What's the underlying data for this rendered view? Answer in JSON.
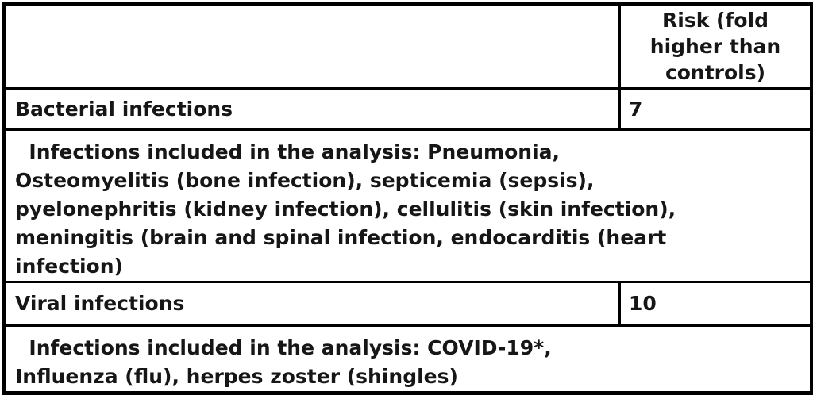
{
  "colors": {
    "border": "#000000",
    "text": "#161616",
    "background": "#ffffff"
  },
  "table": {
    "header": {
      "risk_label": "Risk (fold higher than controls)"
    },
    "bacterial": {
      "label": "Bacterial infections",
      "value": "7",
      "details": "  Infections included in the analysis: Pneumonia,\nOsteomyelitis (bone infection), septicemia (sepsis),\npyelonephritis (kidney infection), cellulitis (skin infection),\nmeningitis (brain and spinal infection, endocarditis (heart\ninfection)"
    },
    "viral": {
      "label": "Viral infections",
      "value": "10",
      "details": "  Infections included in the analysis: COVID-19*,\nInfluenza (flu), herpes zoster (shingles)"
    }
  },
  "chart_data": {
    "type": "table",
    "columns": [
      "",
      "Risk (fold higher than controls)"
    ],
    "rows": [
      [
        "Bacterial infections",
        "7"
      ],
      [
        "Infections included in the analysis: Pneumonia, Osteomyelitis (bone infection), septicemia (sepsis), pyelonephritis (kidney infection), cellulitis (skin infection), meningitis (brain and spinal infection, endocarditis (heart infection)",
        ""
      ],
      [
        "Viral infections",
        "10"
      ],
      [
        "Infections included in the analysis: COVID-19*, Influenza (flu), herpes zoster (shingles)",
        ""
      ]
    ]
  }
}
